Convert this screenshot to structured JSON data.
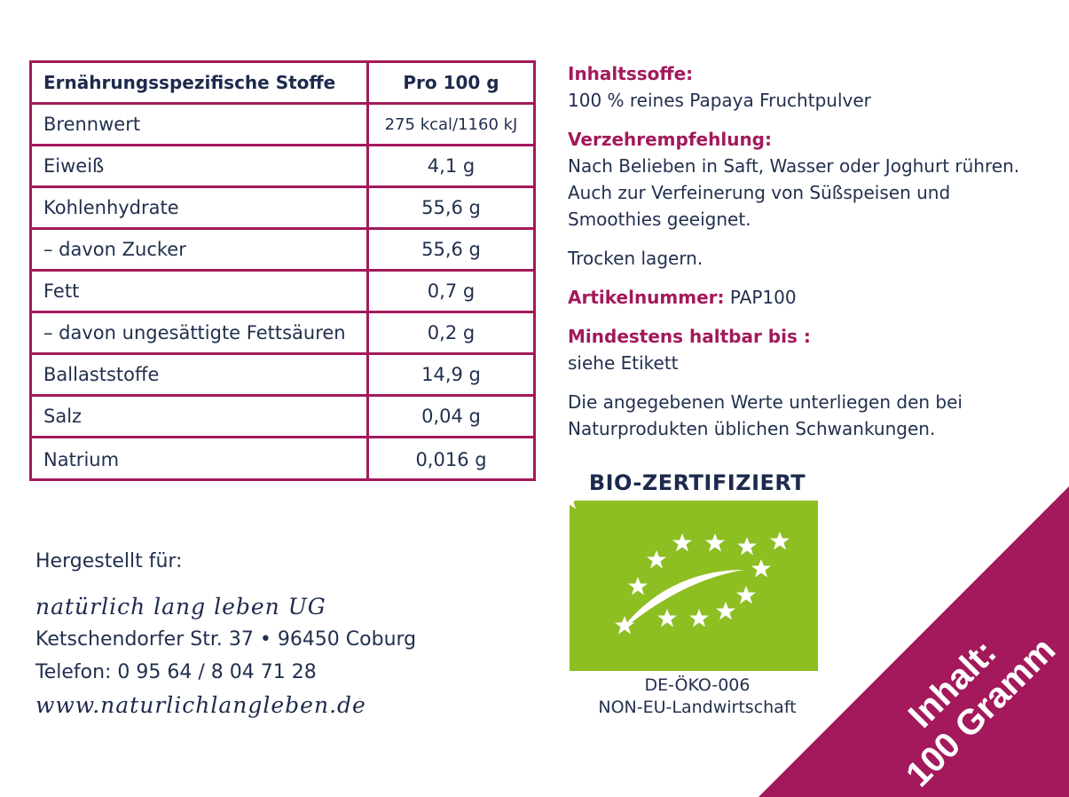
{
  "nutrition": {
    "header": {
      "name": "Ernährungsspezifische Stoffe",
      "value": "Pro 100 g"
    },
    "rows": [
      {
        "name": "Brennwert",
        "value": "275 kcal/1160 kJ"
      },
      {
        "name": "Eiweiß",
        "value": "4,1 g"
      },
      {
        "name": "Kohlenhydrate",
        "value": "55,6 g"
      },
      {
        "name": "– davon Zucker",
        "value": "55,6 g"
      },
      {
        "name": "Fett",
        "value": "0,7 g"
      },
      {
        "name": "– davon ungesättigte Fettsäuren",
        "value": "0,2 g"
      },
      {
        "name": "Ballaststoffe",
        "value": "14,9 g"
      },
      {
        "name": "Salz",
        "value": "0,04 g"
      },
      {
        "name": "Natrium",
        "value": "0,016 g"
      }
    ]
  },
  "info": {
    "ingredients_heading": "Inhaltssoffe:",
    "ingredients_text": "100 % reines Papaya Fruchtpulver",
    "recommendation_heading": "Verzehrempfehlung:",
    "recommendation_text": "Nach Belieben in Saft, Wasser oder Joghurt rühren. Auch zur Verfeinerung von Süßspeisen und Smoothies geeignet.",
    "storage": "Trocken lagern.",
    "article_label": "Artikelnummer:",
    "article_value": "PAP100",
    "bestbefore_heading": "Mindestens haltbar bis :",
    "bestbefore_text": "siehe Etikett",
    "note": "Die angegebenen Werte unterliegen den bei Naturprodukten üblichen Schwankungen."
  },
  "maker": {
    "label": "Hergestellt für:",
    "company": "natürlich lang leben UG",
    "address": "Ketschendorfer Str. 37 • 96450 Coburg",
    "phone": "Telefon: 0 95 64 / 8 04 71 28",
    "website": "www.naturlichlangleben.de"
  },
  "bio": {
    "title": "BIO-ZERTIFIZIERT",
    "code": "DE-ÖKO-006",
    "origin": "NON-EU-Landwirtschaft"
  },
  "corner": {
    "line1": "Inhalt:",
    "line2": "100 Gramm"
  },
  "colors": {
    "accent": "#a3195b",
    "text": "#22304f",
    "bio_green": "#8dbe22"
  }
}
